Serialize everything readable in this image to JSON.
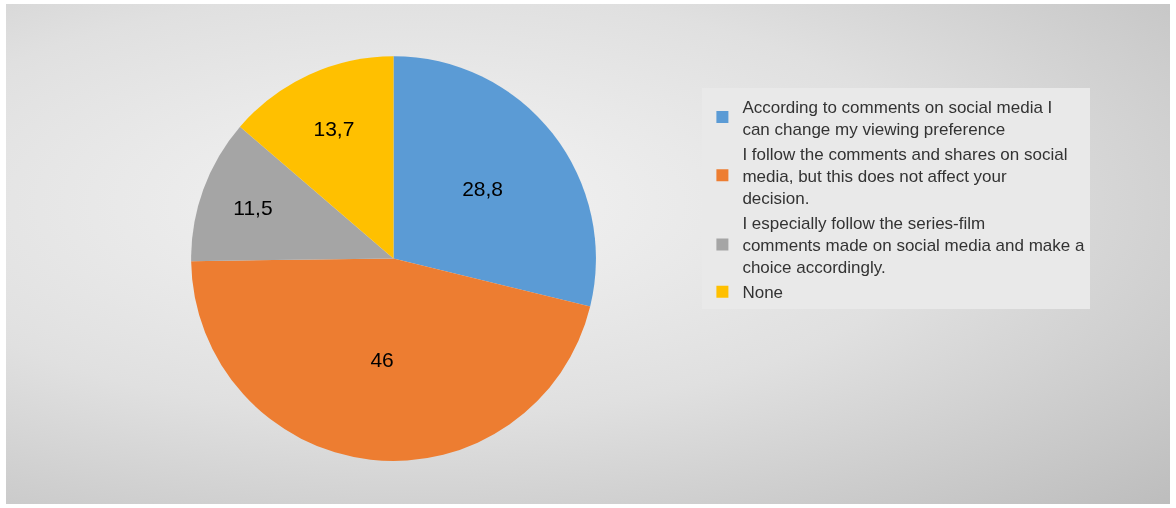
{
  "chart_data": {
    "type": "pie",
    "categories": [
      "According to comments on social media I can change my viewing preference",
      "I follow the comments and shares on social media, but this does not affect your decision.",
      "I especially follow the series-film comments made on social media and make a choice accordingly.",
      "None"
    ],
    "values": [
      28.8,
      46,
      11.5,
      13.7
    ],
    "value_labels": [
      "28,8",
      "46",
      "11,5",
      "13,7"
    ],
    "colors": [
      "#5b9bd5",
      "#ed7d31",
      "#a5a5a5",
      "#ffc000"
    ],
    "legend": "right"
  }
}
